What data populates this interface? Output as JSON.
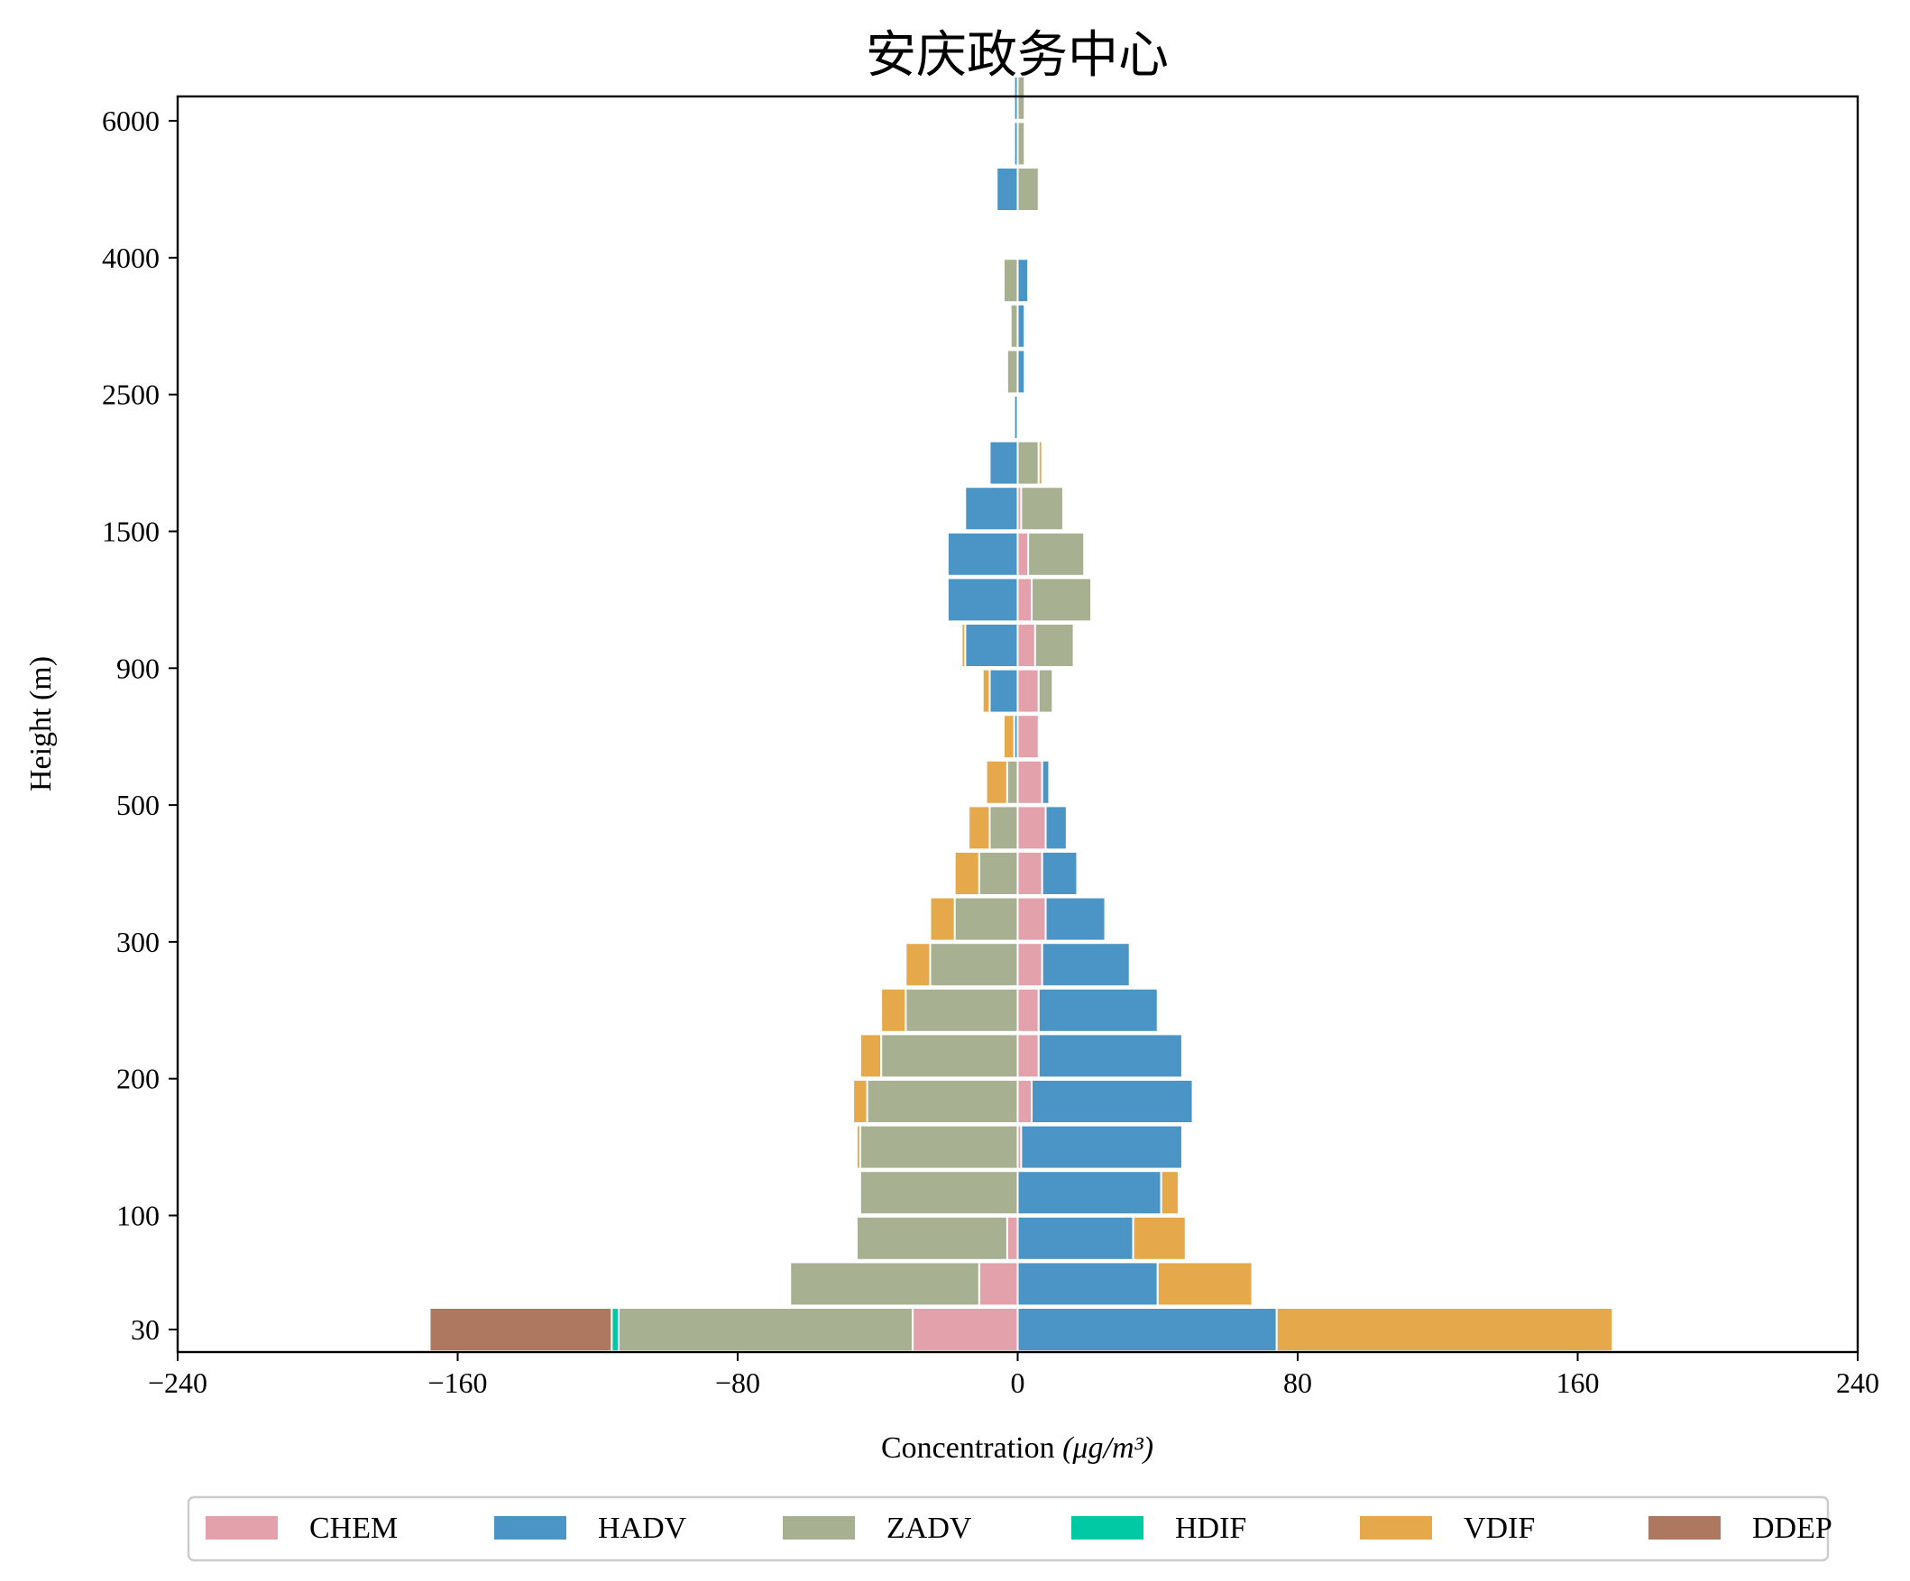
{
  "chart_data": {
    "type": "bar",
    "orientation": "horizontal",
    "stacked": "diverging",
    "title": "安庆政务中心",
    "xlabel": "Concentration",
    "xlabel_unit": "(μg/m³)",
    "ylabel": "Height (m)",
    "xlim": [
      -240,
      240
    ],
    "x_ticks": [
      -240,
      -160,
      -80,
      0,
      80,
      160,
      240
    ],
    "x_tick_labels": [
      "−240",
      "−160",
      "−80",
      "0",
      "80",
      "160",
      "240"
    ],
    "y_tick_labels": [
      "30",
      "100",
      "200",
      "300",
      "500",
      "900",
      "1500",
      "2500",
      "4000",
      "6000"
    ],
    "legend_position": "bottom",
    "legend": [
      "CHEM",
      "HADV",
      "ZADV",
      "HDIF",
      "VDIF",
      "DDEP"
    ],
    "colors": {
      "CHEM": "#e3a2ab",
      "HADV": "#4a94c6",
      "ZADV": "#a7b192",
      "HDIF": "#00c9a3",
      "VDIF": "#e5a94c",
      "DDEP": "#ad7760"
    },
    "levels": [
      {
        "CHEM": -30,
        "HADV": 74,
        "ZADV": -84,
        "HDIF": -2,
        "VDIF": 96,
        "DDEP": -52
      },
      {
        "CHEM": -11,
        "HADV": 40,
        "ZADV": -54,
        "HDIF": 0,
        "VDIF": 27,
        "DDEP": 0
      },
      {
        "CHEM": -3,
        "HADV": 33,
        "ZADV": -43,
        "HDIF": 0,
        "VDIF": 15,
        "DDEP": 0
      },
      {
        "CHEM": 0,
        "HADV": 41,
        "ZADV": -45,
        "HDIF": 0,
        "VDIF": 5,
        "DDEP": 0
      },
      {
        "CHEM": 1,
        "HADV": 46,
        "ZADV": -45,
        "HDIF": 0,
        "VDIF": -1,
        "DDEP": 0
      },
      {
        "CHEM": 4,
        "HADV": 46,
        "ZADV": -43,
        "HDIF": 0,
        "VDIF": -4,
        "DDEP": 0
      },
      {
        "CHEM": 6,
        "HADV": 41,
        "ZADV": -39,
        "HDIF": 0,
        "VDIF": -6,
        "DDEP": 0
      },
      {
        "CHEM": 6,
        "HADV": 34,
        "ZADV": -32,
        "HDIF": 0,
        "VDIF": -7,
        "DDEP": 0
      },
      {
        "CHEM": 7,
        "HADV": 25,
        "ZADV": -25,
        "HDIF": 0,
        "VDIF": -7,
        "DDEP": 0
      },
      {
        "CHEM": 8,
        "HADV": 17,
        "ZADV": -18,
        "HDIF": 0,
        "VDIF": -7,
        "DDEP": 0
      },
      {
        "CHEM": 7,
        "HADV": 10,
        "ZADV": -11,
        "HDIF": 0,
        "VDIF": -7,
        "DDEP": 0
      },
      {
        "CHEM": 8,
        "HADV": 6,
        "ZADV": -8,
        "HDIF": 0,
        "VDIF": -6,
        "DDEP": 0
      },
      {
        "CHEM": 7,
        "HADV": 2,
        "ZADV": -3,
        "HDIF": 0,
        "VDIF": -6,
        "DDEP": 0
      },
      {
        "CHEM": 6,
        "HADV": -1,
        "ZADV": 0,
        "HDIF": 0,
        "VDIF": -3,
        "DDEP": 0
      },
      {
        "CHEM": 6,
        "HADV": -8,
        "ZADV": 4,
        "HDIF": 0,
        "VDIF": -2,
        "DDEP": 0
      },
      {
        "CHEM": 5,
        "HADV": -15,
        "ZADV": 11,
        "HDIF": 0,
        "VDIF": -1,
        "DDEP": 0
      },
      {
        "CHEM": 4,
        "HADV": -20,
        "ZADV": 17,
        "HDIF": 0,
        "VDIF": 0,
        "DDEP": 0
      },
      {
        "CHEM": 3,
        "HADV": -20,
        "ZADV": 16,
        "HDIF": 0,
        "VDIF": 0,
        "DDEP": 0
      },
      {
        "CHEM": 1,
        "HADV": -15,
        "ZADV": 12,
        "HDIF": 0,
        "VDIF": 0,
        "DDEP": 0
      },
      {
        "CHEM": 0,
        "HADV": -8,
        "ZADV": 6,
        "HDIF": 0,
        "VDIF": 1,
        "DDEP": 0
      },
      {
        "CHEM": 0,
        "HADV": -1,
        "ZADV": 0,
        "HDIF": 0,
        "VDIF": 0,
        "DDEP": 0
      },
      {
        "CHEM": 0,
        "HADV": 2,
        "ZADV": -3,
        "HDIF": 0,
        "VDIF": 0,
        "DDEP": 0
      },
      {
        "CHEM": 0,
        "HADV": 2,
        "ZADV": -2,
        "HDIF": 0,
        "VDIF": 0,
        "DDEP": 0
      },
      {
        "CHEM": 0,
        "HADV": 3,
        "ZADV": -4,
        "HDIF": 0,
        "VDIF": 0,
        "DDEP": 0
      },
      {
        "CHEM": 0,
        "HADV": 0,
        "ZADV": 0,
        "HDIF": 0,
        "VDIF": 0,
        "DDEP": 0
      },
      {
        "CHEM": 0,
        "HADV": -6,
        "ZADV": 6,
        "HDIF": 0,
        "VDIF": 0,
        "DDEP": 0
      },
      {
        "CHEM": 0,
        "HADV": -1,
        "ZADV": 2,
        "HDIF": 0,
        "VDIF": 0,
        "DDEP": 0
      },
      {
        "CHEM": 0,
        "HADV": -1,
        "ZADV": 2,
        "HDIF": 0,
        "VDIF": 0,
        "DDEP": 0
      }
    ],
    "y_tick_level_index": [
      0,
      2.5,
      5.5,
      8.5,
      11.5,
      14.5,
      17.5,
      20.5,
      23.5,
      26.5
    ]
  }
}
